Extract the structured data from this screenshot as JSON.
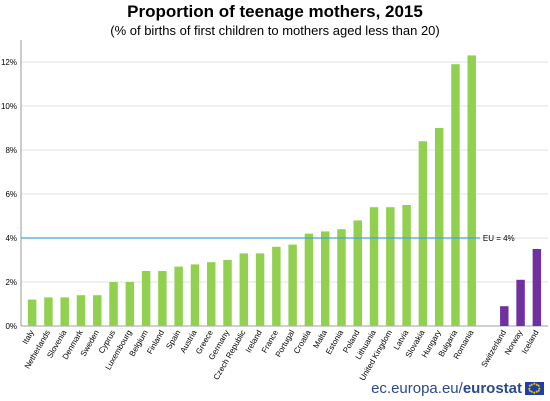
{
  "title": "Proportion of teenage mothers, 2015",
  "subtitle": "(% of births of first children to mothers aged less than 20)",
  "footer": {
    "site": "ec.europa.eu/",
    "brand": "eurostat"
  },
  "colors": {
    "eu": "#92d050",
    "nonEu": "#7030a0",
    "euLine": "#3fa7e0",
    "grid": "#d9d9d9",
    "axis": "#808080"
  },
  "chart_data": {
    "type": "bar",
    "title": "Proportion of teenage mothers, 2015",
    "subtitle": "(% of births of first children to mothers aged less than 20)",
    "xlabel": "",
    "ylabel": "",
    "ylim": [
      0,
      13
    ],
    "yticks": [
      0,
      2,
      4,
      6,
      8,
      10,
      12
    ],
    "ytick_suffix": "%",
    "grid": true,
    "categories": [
      "Italy",
      "Netherlands",
      "Slovenia",
      "Denmark",
      "Sweden",
      "Cyprus",
      "Luxembourg",
      "Belgium",
      "Finland",
      "Spain",
      "Austria",
      "Greece",
      "Germany",
      "Czech Republic",
      "Ireland",
      "France",
      "Portugal",
      "Croatia",
      "Malta",
      "Estonia",
      "Poland",
      "Lithuania",
      "United Kingdom",
      "Latvia",
      "Slovakia",
      "Hungary",
      "Bulgaria",
      "Romania",
      "",
      "Switzerland",
      "Norway",
      "Iceland"
    ],
    "values": [
      1.2,
      1.3,
      1.3,
      1.4,
      1.4,
      2.0,
      2.0,
      2.5,
      2.5,
      2.7,
      2.8,
      2.9,
      3.0,
      3.3,
      3.3,
      3.6,
      3.7,
      4.2,
      4.3,
      4.4,
      4.8,
      5.4,
      5.4,
      5.5,
      8.4,
      9.0,
      11.9,
      12.3,
      null,
      0.9,
      2.1,
      3.5
    ],
    "groups": [
      "eu",
      "eu",
      "eu",
      "eu",
      "eu",
      "eu",
      "eu",
      "eu",
      "eu",
      "eu",
      "eu",
      "eu",
      "eu",
      "eu",
      "eu",
      "eu",
      "eu",
      "eu",
      "eu",
      "eu",
      "eu",
      "eu",
      "eu",
      "eu",
      "eu",
      "eu",
      "eu",
      "eu",
      "",
      "nonEu",
      "nonEu",
      "nonEu"
    ],
    "reference_line": {
      "value": 4,
      "label": "EU = 4%"
    }
  }
}
